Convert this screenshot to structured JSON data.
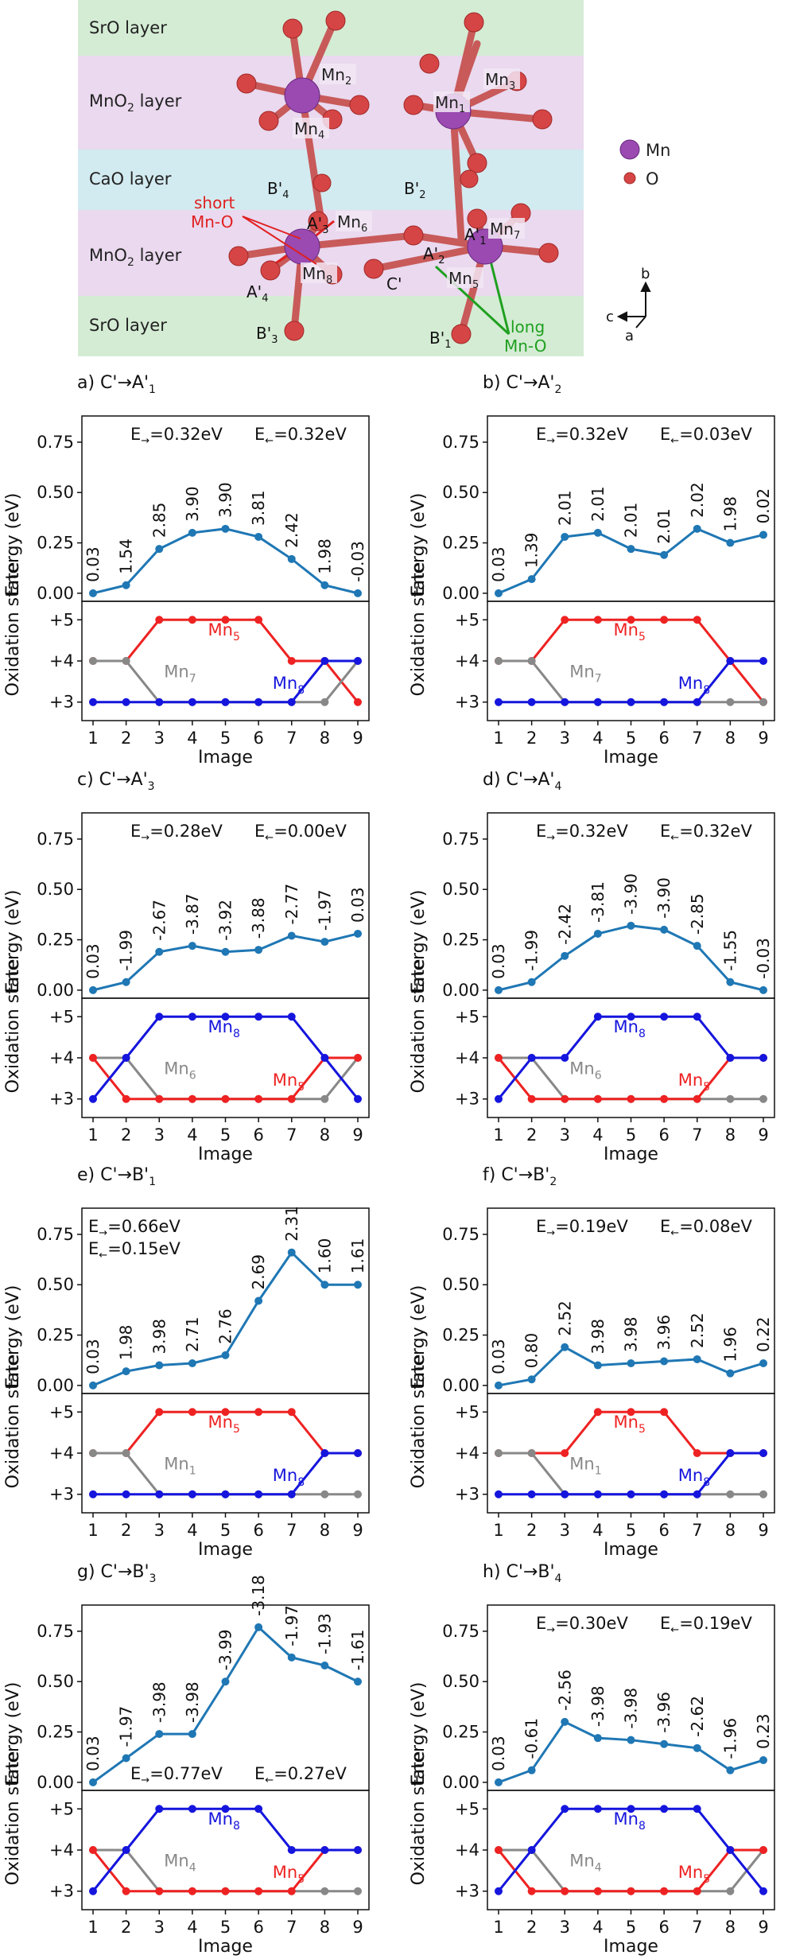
{
  "structure": {
    "layers": [
      {
        "label": "SrO layer",
        "color": "#d4ecd4"
      },
      {
        "label": "MnO2 layer",
        "color": "#ead9ef"
      },
      {
        "label": "CaO layer",
        "color": "#d2ebf0"
      },
      {
        "label": "MnO2 layer",
        "color": "#ead9ef"
      },
      {
        "label": "SrO layer",
        "color": "#d4ecd4"
      }
    ],
    "mn_labels": [
      "Mn2",
      "Mn1",
      "Mn3",
      "Mn4",
      "Mn6",
      "Mn8",
      "Mn5",
      "Mn7"
    ],
    "site_labels": [
      "B'4",
      "B'2",
      "A'3",
      "A'1",
      "A'2",
      "A'4",
      "C'",
      "B'3",
      "B'1"
    ],
    "short_label_1": "short",
    "short_label_2": "Mn-O",
    "long_label_1": "long",
    "long_label_2": "Mn-O",
    "legend": [
      {
        "label": "Mn",
        "color": "#9a4ab0"
      },
      {
        "label": "O",
        "color": "#d64545"
      }
    ],
    "axes": {
      "b": "b",
      "c": "c",
      "a": "a"
    },
    "colors": {
      "mn": "#9a4ab0",
      "o": "#d64545",
      "short": "#e02020",
      "long": "#20a020"
    }
  },
  "chart_data": [
    {
      "type": "line",
      "panel": "a)",
      "title": "C'→A'1",
      "title_base": "C'→A'",
      "title_sub": "1",
      "x": [
        1,
        2,
        3,
        4,
        5,
        6,
        7,
        8,
        9
      ],
      "energy": [
        0.0,
        0.04,
        0.22,
        0.3,
        0.32,
        0.28,
        0.17,
        0.04,
        0.0
      ],
      "labels": [
        "0.03",
        "1.54",
        "2.85",
        "3.90",
        "3.90",
        "3.81",
        "2.42",
        "1.98",
        "-0.03"
      ],
      "e_forward": "0.32eV",
      "e_backward": "0.32eV",
      "e_layout": "top-row",
      "ox": [
        {
          "name": "Mn5",
          "color": "#ee2222",
          "values": [
            4,
            4,
            5,
            5,
            5,
            5,
            4,
            4,
            3
          ]
        },
        {
          "name": "Mn7",
          "color": "#888888",
          "values": [
            4,
            4,
            3,
            3,
            3,
            3,
            3,
            3,
            4
          ]
        },
        {
          "name": "Mn8",
          "color": "#1515dd",
          "values": [
            3,
            3,
            3,
            3,
            3,
            3,
            3,
            4,
            4
          ]
        }
      ]
    },
    {
      "type": "line",
      "panel": "b)",
      "title": "C'→A'2",
      "title_base": "C'→A'",
      "title_sub": "2",
      "x": [
        1,
        2,
        3,
        4,
        5,
        6,
        7,
        8,
        9
      ],
      "energy": [
        0.0,
        0.07,
        0.28,
        0.3,
        0.22,
        0.19,
        0.32,
        0.25,
        0.29
      ],
      "labels": [
        "0.03",
        "1.39",
        "2.01",
        "2.01",
        "2.01",
        "2.01",
        "2.02",
        "1.98",
        "0.02"
      ],
      "e_forward": "0.32eV",
      "e_backward": "0.03eV",
      "e_layout": "top-row",
      "ox": [
        {
          "name": "Mn5",
          "color": "#ee2222",
          "values": [
            4,
            4,
            5,
            5,
            5,
            5,
            5,
            4,
            3
          ]
        },
        {
          "name": "Mn7",
          "color": "#888888",
          "values": [
            4,
            4,
            3,
            3,
            3,
            3,
            3,
            3,
            3
          ]
        },
        {
          "name": "Mn8",
          "color": "#1515dd",
          "values": [
            3,
            3,
            3,
            3,
            3,
            3,
            3,
            4,
            4
          ]
        }
      ]
    },
    {
      "type": "line",
      "panel": "c)",
      "title": "C'→A'3",
      "title_base": "C'→A'",
      "title_sub": "3",
      "x": [
        1,
        2,
        3,
        4,
        5,
        6,
        7,
        8,
        9
      ],
      "energy": [
        0.0,
        0.04,
        0.19,
        0.22,
        0.19,
        0.2,
        0.27,
        0.24,
        0.28
      ],
      "labels": [
        "0.03",
        "-1.99",
        "-2.67",
        "-3.87",
        "-3.92",
        "-3.88",
        "-2.77",
        "-1.97",
        "0.03"
      ],
      "e_forward": "0.28eV",
      "e_backward": "0.00eV",
      "e_layout": "top-row",
      "ox": [
        {
          "name": "Mn6",
          "color": "#888888",
          "values": [
            4,
            4,
            3,
            3,
            3,
            3,
            3,
            3,
            4
          ]
        },
        {
          "name": "Mn5",
          "color": "#ee2222",
          "values": [
            4,
            3,
            3,
            3,
            3,
            3,
            3,
            4,
            4
          ]
        },
        {
          "name": "Mn8",
          "color": "#1515dd",
          "values": [
            3,
            4,
            5,
            5,
            5,
            5,
            5,
            4,
            3
          ]
        }
      ]
    },
    {
      "type": "line",
      "panel": "d)",
      "title": "C'→A'4",
      "title_base": "C'→A'",
      "title_sub": "4",
      "x": [
        1,
        2,
        3,
        4,
        5,
        6,
        7,
        8,
        9
      ],
      "energy": [
        0.0,
        0.04,
        0.17,
        0.28,
        0.32,
        0.3,
        0.22,
        0.04,
        0.0
      ],
      "labels": [
        "0.03",
        "-1.99",
        "-2.42",
        "-3.81",
        "-3.90",
        "-3.90",
        "-2.85",
        "-1.55",
        "-0.03"
      ],
      "e_forward": "0.32eV",
      "e_backward": "0.32eV",
      "e_layout": "top-row",
      "ox": [
        {
          "name": "Mn6",
          "color": "#888888",
          "values": [
            4,
            4,
            3,
            3,
            3,
            3,
            3,
            3,
            3
          ]
        },
        {
          "name": "Mn5",
          "color": "#ee2222",
          "values": [
            4,
            3,
            3,
            3,
            3,
            3,
            3,
            4,
            4
          ]
        },
        {
          "name": "Mn8",
          "color": "#1515dd",
          "values": [
            3,
            4,
            4,
            5,
            5,
            5,
            5,
            4,
            4
          ]
        }
      ]
    },
    {
      "type": "line",
      "panel": "e)",
      "title": "C'→B'1",
      "title_base": "C'→B'",
      "title_sub": "1",
      "x": [
        1,
        2,
        3,
        4,
        5,
        6,
        7,
        8,
        9
      ],
      "energy": [
        0.0,
        0.07,
        0.1,
        0.11,
        0.15,
        0.42,
        0.66,
        0.5,
        0.5
      ],
      "labels": [
        "0.03",
        "1.98",
        "3.98",
        "2.71",
        "2.76",
        "2.69",
        "2.31",
        "1.60",
        "1.61"
      ],
      "e_forward": "0.66eV",
      "e_backward": "0.15eV",
      "e_layout": "top-left-stacked",
      "ox": [
        {
          "name": "Mn5",
          "color": "#ee2222",
          "values": [
            4,
            4,
            5,
            5,
            5,
            5,
            5,
            4,
            4
          ]
        },
        {
          "name": "Mn1",
          "color": "#888888",
          "values": [
            4,
            4,
            3,
            3,
            3,
            3,
            3,
            3,
            3
          ]
        },
        {
          "name": "Mn8",
          "color": "#1515dd",
          "values": [
            3,
            3,
            3,
            3,
            3,
            3,
            3,
            4,
            4
          ]
        }
      ]
    },
    {
      "type": "line",
      "panel": "f)",
      "title": "C'→B'2",
      "title_base": "C'→B'",
      "title_sub": "2",
      "x": [
        1,
        2,
        3,
        4,
        5,
        6,
        7,
        8,
        9
      ],
      "energy": [
        0.0,
        0.03,
        0.19,
        0.1,
        0.11,
        0.12,
        0.13,
        0.06,
        0.11
      ],
      "labels": [
        "0.03",
        "0.80",
        "2.52",
        "3.98",
        "3.98",
        "3.96",
        "2.52",
        "1.96",
        "0.22"
      ],
      "e_forward": "0.19eV",
      "e_backward": "0.08eV",
      "e_layout": "top-row",
      "ox": [
        {
          "name": "Mn5",
          "color": "#ee2222",
          "values": [
            4,
            4,
            4,
            5,
            5,
            5,
            4,
            4,
            4
          ]
        },
        {
          "name": "Mn1",
          "color": "#888888",
          "values": [
            4,
            4,
            3,
            3,
            3,
            3,
            3,
            3,
            3
          ]
        },
        {
          "name": "Mn8",
          "color": "#1515dd",
          "values": [
            3,
            3,
            3,
            3,
            3,
            3,
            3,
            4,
            4
          ]
        }
      ]
    },
    {
      "type": "line",
      "panel": "g)",
      "title": "C'→B'3",
      "title_base": "C'→B'",
      "title_sub": "3",
      "x": [
        1,
        2,
        3,
        4,
        5,
        6,
        7,
        8,
        9
      ],
      "energy": [
        0.0,
        0.12,
        0.24,
        0.24,
        0.5,
        0.77,
        0.62,
        0.58,
        0.5
      ],
      "labels": [
        "0.03",
        "-1.97",
        "-3.98",
        "-3.98",
        "-3.99",
        "-3.18",
        "-1.97",
        "-1.93",
        "-1.61"
      ],
      "e_forward": "0.77eV",
      "e_backward": "0.27eV",
      "e_layout": "bottom-row",
      "ox": [
        {
          "name": "Mn4",
          "color": "#888888",
          "values": [
            4,
            4,
            3,
            3,
            3,
            3,
            3,
            3,
            3
          ]
        },
        {
          "name": "Mn5",
          "color": "#ee2222",
          "values": [
            4,
            3,
            3,
            3,
            3,
            3,
            3,
            4,
            4
          ]
        },
        {
          "name": "Mn8",
          "color": "#1515dd",
          "values": [
            3,
            4,
            5,
            5,
            5,
            5,
            4,
            4,
            4
          ]
        }
      ]
    },
    {
      "type": "line",
      "panel": "h)",
      "title": "C'→B'4",
      "title_base": "C'→B'",
      "title_sub": "4",
      "x": [
        1,
        2,
        3,
        4,
        5,
        6,
        7,
        8,
        9
      ],
      "energy": [
        0.0,
        0.06,
        0.3,
        0.22,
        0.21,
        0.19,
        0.17,
        0.06,
        0.11
      ],
      "labels": [
        "0.03",
        "-0.61",
        "-2.56",
        "-3.98",
        "-3.98",
        "-3.96",
        "-2.62",
        "-1.96",
        "0.23"
      ],
      "e_forward": "0.30eV",
      "e_backward": "0.19eV",
      "e_layout": "top-row",
      "ox": [
        {
          "name": "Mn4",
          "color": "#888888",
          "values": [
            4,
            4,
            3,
            3,
            3,
            3,
            3,
            3,
            4
          ]
        },
        {
          "name": "Mn5",
          "color": "#ee2222",
          "values": [
            4,
            3,
            3,
            3,
            3,
            3,
            3,
            4,
            4
          ]
        },
        {
          "name": "Mn8",
          "color": "#1515dd",
          "values": [
            3,
            4,
            5,
            5,
            5,
            5,
            5,
            4,
            3
          ]
        }
      ]
    }
  ],
  "axis_text": {
    "energy_ylabel": "Energy (eV)",
    "ox_ylabel": "Oxidation state",
    "xlabel": "Image",
    "energy_ticks": [
      "0.00",
      "0.25",
      "0.50",
      "0.75"
    ],
    "energy_tick_values": [
      0,
      0.25,
      0.5,
      0.75
    ],
    "energy_ylim": [
      -0.04,
      0.88
    ],
    "ox_ticks": [
      "+3",
      "+4",
      "+5"
    ],
    "ox_tick_values": [
      3,
      4,
      5
    ],
    "ox_ylim": [
      2.55,
      5.45
    ],
    "x_ticks": [
      "1",
      "2",
      "3",
      "4",
      "5",
      "6",
      "7",
      "8",
      "9"
    ],
    "e_forward_prefix": "E",
    "e_forward_arrow": "→",
    "e_backward_prefix": "E",
    "e_backward_arrow": "←",
    "equals": "=",
    "energy_color": "#1f77b4"
  }
}
